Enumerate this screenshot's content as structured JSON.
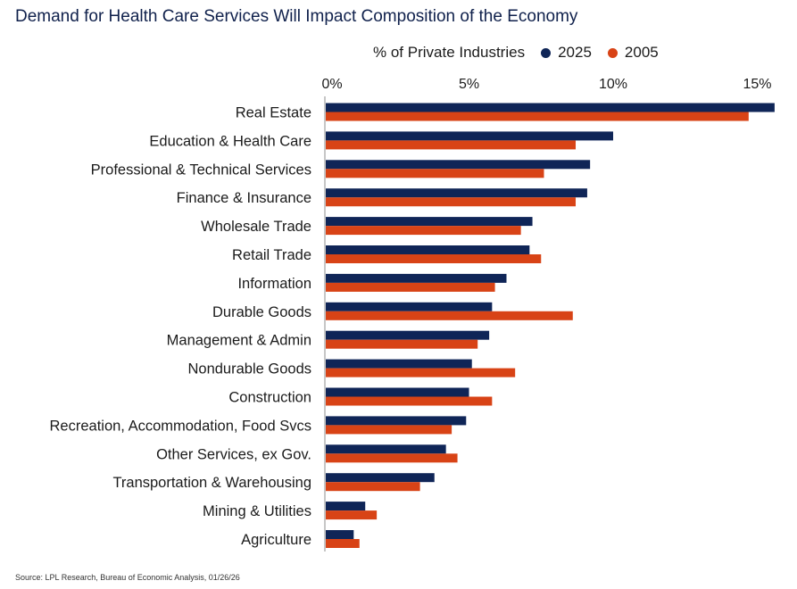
{
  "title": "Demand for Health Care Services Will Impact Composition of the Economy",
  "legend": {
    "title": "% of Private Industries",
    "items": [
      {
        "name": "2025",
        "color": "#0f2557"
      },
      {
        "name": "2005",
        "color": "#d84316"
      }
    ]
  },
  "source": "Source: LPL Research, Bureau of Economic Analysis, 01/26/26",
  "chart_data": {
    "type": "bar",
    "orientation": "horizontal",
    "title": "Demand for Health Care Services Will Impact Composition of the Economy",
    "xlabel": "% of Private Industries",
    "ylabel": "",
    "xlim": [
      0,
      15.5
    ],
    "x_ticks": [
      0,
      5,
      10,
      15
    ],
    "x_tick_labels": [
      "0%",
      "5%",
      "10%",
      "15%"
    ],
    "categories": [
      "Real Estate",
      "Education & Health Care",
      "Professional & Technical Services",
      "Finance & Insurance",
      "Wholesale Trade",
      "Retail Trade",
      "Information",
      "Durable Goods",
      "Management & Admin",
      "Nondurable Goods",
      "Construction",
      "Recreation, Accommodation, Food Svcs",
      "Other Services, ex Gov.",
      "Transportation & Warehousing",
      "Mining  & Utilities",
      "Agriculture"
    ],
    "series": [
      {
        "name": "2025",
        "color": "#0f2557",
        "values": [
          15.6,
          10.0,
          9.2,
          9.1,
          7.2,
          7.1,
          6.3,
          5.8,
          5.7,
          5.1,
          5.0,
          4.9,
          4.2,
          3.8,
          1.4,
          1.0
        ]
      },
      {
        "name": "2005",
        "color": "#d84316",
        "values": [
          14.7,
          8.7,
          7.6,
          8.7,
          6.8,
          7.5,
          5.9,
          8.6,
          5.3,
          6.6,
          5.8,
          4.4,
          4.6,
          3.3,
          1.8,
          1.2
        ]
      }
    ]
  }
}
